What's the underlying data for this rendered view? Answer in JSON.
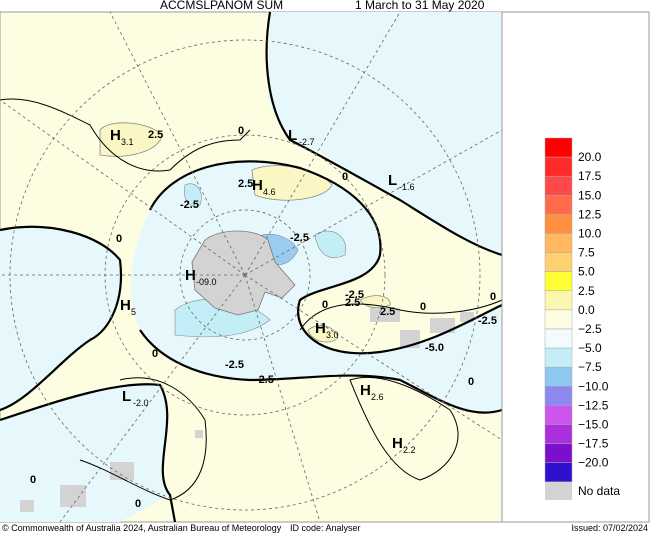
{
  "header": {
    "title": "ACCMSLPANOM SUM",
    "period": "1 March to 31 May 2020"
  },
  "map_labels": [
    {
      "letter": "H",
      "value": "3.1"
    },
    {
      "text": "2.5"
    },
    {
      "text": "0"
    },
    {
      "letter": "L",
      "value": "-2.7"
    },
    {
      "text": "0"
    },
    {
      "letter": "L",
      "value": "-1.6"
    },
    {
      "text": "2.5"
    },
    {
      "letter": "H",
      "value": "4.6"
    },
    {
      "text": "-2.5"
    },
    {
      "text": "0"
    },
    {
      "text": "-2.5"
    },
    {
      "letter": "H",
      "value": "-09.0"
    },
    {
      "text": "0"
    },
    {
      "letter": "H",
      "value": "5"
    },
    {
      "text": "0"
    },
    {
      "text": "-2.5"
    },
    {
      "text": "-2.5"
    },
    {
      "letter": "L",
      "value": "-2.0"
    },
    {
      "text": "2.5"
    },
    {
      "letter": "H",
      "value": "3.0"
    },
    {
      "text": "2.5"
    },
    {
      "text": "-2.5"
    },
    {
      "text": "0"
    },
    {
      "text": "-5.0"
    },
    {
      "text": "-2.5"
    },
    {
      "text": "0"
    },
    {
      "letter": "H",
      "value": "2.6"
    },
    {
      "letter": "H",
      "value": "2.2"
    },
    {
      "text": "0"
    },
    {
      "text": "0"
    },
    {
      "text": "0"
    }
  ],
  "legend": {
    "labels": [
      "20.0",
      "17.5",
      "15.0",
      "12.5",
      "10.0",
      "7.5",
      "5.0",
      "2.5",
      "0.0",
      "−2.5",
      "−5.0",
      "−7.5",
      "−10.0",
      "−12.5",
      "−15.0",
      "−17.5",
      "−20.0"
    ],
    "no_data": "No data"
  },
  "footer": {
    "copyright": "© Commonwealth of Australia 2024, Australian Bureau of Meteorology",
    "id_code": "ID code: Analyser",
    "issued": "Issued: 07/02/2024"
  }
}
